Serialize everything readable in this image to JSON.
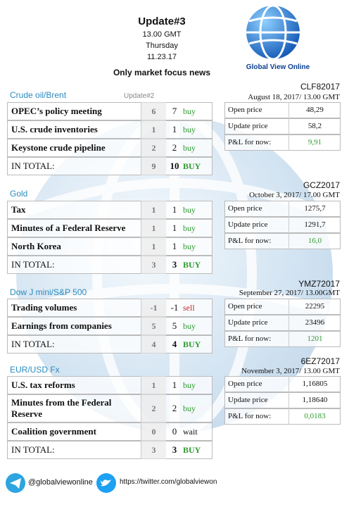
{
  "header": {
    "title": "Update#3",
    "time": "13.00 GMT",
    "day": "Thursday",
    "date": "11.23.17",
    "subtitle": "Only market focus news",
    "logo_text": "Global View Online"
  },
  "sections": [
    {
      "heading": "Crude oil/Brent",
      "note": "Update#2",
      "rows": [
        {
          "label": "OPEC’s policy meeting",
          "prev": 6,
          "current": 7,
          "signal": "buy"
        },
        {
          "label": "U.S. crude inventories",
          "prev": 1,
          "current": 1,
          "signal": "buy"
        },
        {
          "label": "Keystone crude pipeline",
          "prev": 2,
          "current": 2,
          "signal": "buy"
        }
      ],
      "total": {
        "label": "IN TOTAL:",
        "prev": 9,
        "current": 10,
        "signal": "BUY"
      },
      "quote": {
        "code": "CLF82017",
        "date": "August 18, 2017/ 13.00 GMT",
        "rows": [
          {
            "label": "Open price",
            "value": "48,29"
          },
          {
            "label": "Update price",
            "value": "58,2"
          },
          {
            "label": "P&L for now:",
            "value": "9,91"
          }
        ]
      }
    },
    {
      "heading": "Gold",
      "rows": [
        {
          "label": "Tax",
          "prev": 1,
          "current": 1,
          "signal": "buy"
        },
        {
          "label": "Minutes of a Federal Reserve",
          "prev": 1,
          "current": 1,
          "signal": "buy"
        },
        {
          "label": "North Korea",
          "prev": 1,
          "current": 1,
          "signal": "buy"
        }
      ],
      "total": {
        "label": "IN TOTAL:",
        "prev": 3,
        "current": 3,
        "signal": "BUY"
      },
      "quote": {
        "code": "GCZ2017",
        "date": "October 3, 2017/ 17.00 GMT",
        "rows": [
          {
            "label": "Open price",
            "value": "1275,7"
          },
          {
            "label": "Update price",
            "value": "1291,7"
          },
          {
            "label": "P&L for now:",
            "value": "16,0"
          }
        ]
      }
    },
    {
      "heading": "Dow J mini/S&P 500",
      "rows": [
        {
          "label": "Trading volumes",
          "prev": -1,
          "current": -1,
          "signal": "sell"
        },
        {
          "label": "Earnings from companies",
          "prev": 5,
          "current": 5,
          "signal": "buy"
        }
      ],
      "total": {
        "label": "IN TOTAL:",
        "prev": 4,
        "current": 4,
        "signal": "BUY"
      },
      "quote": {
        "code": "YMZ72017",
        "date": "September 27, 2017/ 13.00GMT",
        "rows": [
          {
            "label": "Open price",
            "value": 22295
          },
          {
            "label": "Update price",
            "value": 23496
          },
          {
            "label": "P&L for now:",
            "value": 1201
          }
        ]
      }
    },
    {
      "heading": "EUR/USD Fx",
      "rows": [
        {
          "label": "U.S. tax reforms",
          "prev": 1,
          "current": 1,
          "signal": "buy"
        },
        {
          "label": "Minutes from the Federal Reserve",
          "prev": 2,
          "current": 2,
          "signal": "buy"
        },
        {
          "label": "Coalition government",
          "prev": 0,
          "current": 0,
          "signal": "wait"
        }
      ],
      "total": {
        "label": "IN TOTAL:",
        "prev": 3,
        "current": 3,
        "signal": "BUY"
      },
      "quote": {
        "code": "6EZ72017",
        "date": "November 3, 2017/ 13.00 GMT",
        "rows": [
          {
            "label": "Open price",
            "value": "1,16805"
          },
          {
            "label": "Update price",
            "value": "1,18640"
          },
          {
            "label": "P&L for now:",
            "value": "0,0183"
          }
        ]
      }
    }
  ],
  "footer": {
    "telegram": "@globalviewonline",
    "twitter": "https://twitter.com/globalviewon"
  }
}
